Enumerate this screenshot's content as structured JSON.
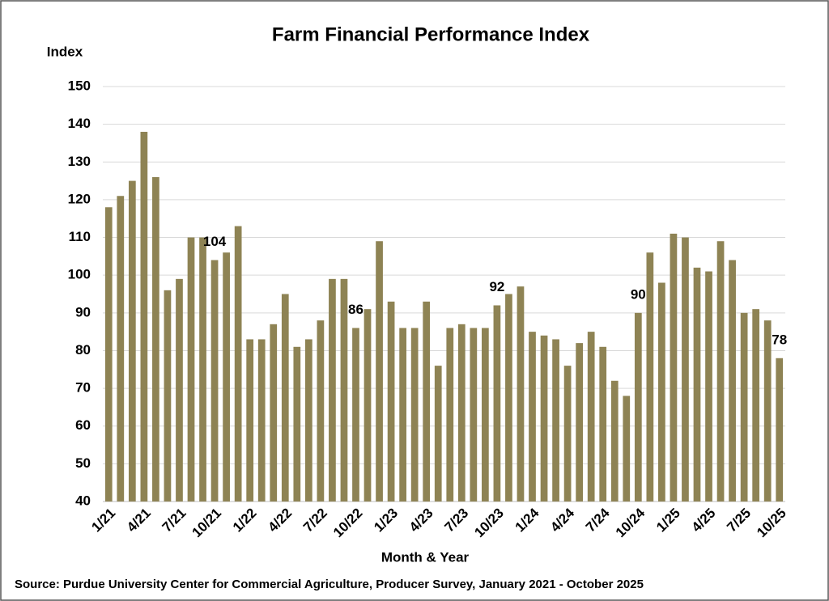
{
  "chart_data": {
    "type": "bar",
    "title": "Farm Financial Performance Index",
    "y_axis_label": "Index",
    "x_axis_label": "Month & Year",
    "source": "Source: Purdue University Center for Commercial Agriculture, Producer Survey, January 2021 - October 2025",
    "categories": [
      "1/21",
      null,
      null,
      "4/21",
      null,
      null,
      "7/21",
      null,
      null,
      "10/21",
      null,
      null,
      "1/22",
      null,
      null,
      "4/22",
      null,
      null,
      "7/22",
      null,
      null,
      "10/22",
      null,
      null,
      "1/23",
      null,
      null,
      "4/23",
      null,
      null,
      "7/23",
      null,
      null,
      "10/23",
      null,
      null,
      "1/24",
      null,
      null,
      "4/24",
      null,
      null,
      "7/24",
      null,
      null,
      "10/24",
      null,
      null,
      "1/25",
      null,
      null,
      "4/25",
      null,
      null,
      "7/25",
      null,
      null,
      "10/25"
    ],
    "values": [
      118,
      121,
      125,
      138,
      126,
      96,
      99,
      110,
      110,
      104,
      106,
      113,
      83,
      83,
      87,
      95,
      81,
      83,
      88,
      99,
      99,
      86,
      91,
      109,
      93,
      86,
      86,
      93,
      76,
      86,
      87,
      86,
      86,
      92,
      95,
      97,
      85,
      84,
      83,
      76,
      82,
      85,
      81,
      72,
      68,
      90,
      106,
      98,
      111,
      110,
      102,
      101,
      109,
      104,
      90,
      91,
      88,
      78
    ],
    "labeled_bars": [
      9,
      21,
      33,
      45,
      57
    ],
    "color": "#8e8354",
    "ylim": [
      40,
      150
    ],
    "yticks": [
      40,
      50,
      60,
      70,
      80,
      90,
      100,
      110,
      120,
      130,
      140,
      150
    ],
    "grid": true
  }
}
